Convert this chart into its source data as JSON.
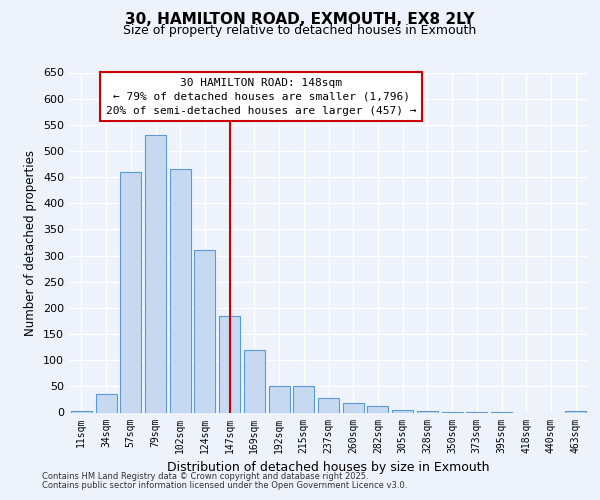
{
  "title": "30, HAMILTON ROAD, EXMOUTH, EX8 2LY",
  "subtitle": "Size of property relative to detached houses in Exmouth",
  "xlabel": "Distribution of detached houses by size in Exmouth",
  "ylabel": "Number of detached properties",
  "bar_labels": [
    "11sqm",
    "34sqm",
    "57sqm",
    "79sqm",
    "102sqm",
    "124sqm",
    "147sqm",
    "169sqm",
    "192sqm",
    "215sqm",
    "237sqm",
    "260sqm",
    "282sqm",
    "305sqm",
    "328sqm",
    "350sqm",
    "373sqm",
    "395sqm",
    "418sqm",
    "440sqm",
    "463sqm"
  ],
  "bar_values": [
    2,
    35,
    460,
    530,
    465,
    310,
    185,
    120,
    50,
    50,
    27,
    18,
    13,
    5,
    2,
    1,
    1,
    1,
    0,
    0,
    2
  ],
  "bar_color": "#c6d9f1",
  "bar_edge_color": "#5b9bd5",
  "vline_x_index": 6,
  "vline_color": "#cc0000",
  "ylim": [
    0,
    650
  ],
  "yticks": [
    0,
    50,
    100,
    150,
    200,
    250,
    300,
    350,
    400,
    450,
    500,
    550,
    600,
    650
  ],
  "annotation_lines": [
    "30 HAMILTON ROAD: 148sqm",
    "← 79% of detached houses are smaller (1,796)",
    "20% of semi-detached houses are larger (457) →"
  ],
  "annotation_box_color": "#cc0000",
  "footer_lines": [
    "Contains HM Land Registry data © Crown copyright and database right 2025.",
    "Contains public sector information licensed under the Open Government Licence v3.0."
  ],
  "background_color": "#eef2fb",
  "grid_color": "#ffffff"
}
